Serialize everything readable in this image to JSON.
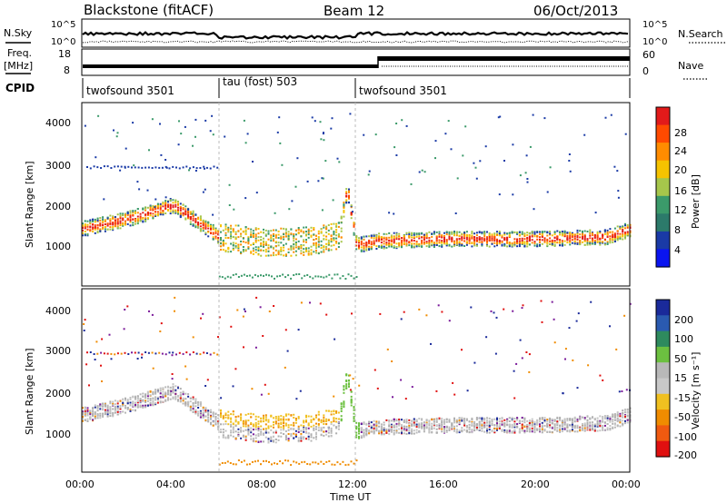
{
  "header": {
    "station": "Blackstone (fitACF)",
    "beam": "Beam 12",
    "date": "06/Oct/2013"
  },
  "panels": {
    "nsky": {
      "left_label": "N.Sky",
      "right_label": "N.Search",
      "left_ticks": [
        "10^5",
        "10^0"
      ],
      "right_ticks": [
        "10^5",
        "10^0"
      ]
    },
    "freq": {
      "left_label_top": "Freq.",
      "left_label_bottom": "[MHz]",
      "right_label": "Nave",
      "left_ticks": [
        "18",
        "8"
      ],
      "right_ticks": [
        "60",
        "0"
      ]
    },
    "cpid": {
      "label": "CPID",
      "segments": [
        {
          "name": "twofsound 3501",
          "start_h": 0,
          "end_h": 6
        },
        {
          "name": "tau (fost) 503",
          "start_h": 6,
          "end_h": 12
        },
        {
          "name": "twofsound 3501",
          "start_h": 12,
          "end_h": 24
        }
      ]
    },
    "power": {
      "ylabel": "Slant Range [km]",
      "yticks": [
        1000,
        2000,
        3000,
        4000
      ],
      "ylim": [
        0,
        4600
      ],
      "colorbar_label": "Power [dB]",
      "colorbar_ticks": [
        "28",
        "24",
        "20",
        "16",
        "12",
        "8",
        "4"
      ],
      "colorbar_colors": [
        "#e21a1a",
        "#ff4a00",
        "#ff8c00",
        "#f6c300",
        "#a6c64b",
        "#3b9a6a",
        "#2c7a6a",
        "#1a3aa6",
        "#0a14f0"
      ]
    },
    "velocity": {
      "ylabel": "Slant Range [km]",
      "yticks": [
        1000,
        2000,
        3000,
        4000
      ],
      "ylim": [
        0,
        4600
      ],
      "colorbar_label": "Velocity [m s⁻¹]",
      "colorbar_ticks": [
        "200",
        "100",
        "50",
        "15",
        "-15",
        "-50",
        "-100",
        "-200"
      ],
      "colorbar_colors": [
        "#1a2a9a",
        "#2a5ab0",
        "#2e8a5e",
        "#6cc040",
        "#b8b8b8",
        "#c8c8c8",
        "#f0c020",
        "#f08c00",
        "#f05a10",
        "#e01010"
      ]
    },
    "xaxis": {
      "label": "Time UT",
      "ticks": [
        "00:00",
        "04:00",
        "08:00",
        "12:00",
        "16:00",
        "20:00",
        "00:00"
      ]
    }
  },
  "chart_data": {
    "type": "heatmap",
    "title": "Blackstone (fitACF) Beam 12 06/Oct/2013",
    "xlabel": "Time UT",
    "ylabel": "Slant Range [km]",
    "xlim": [
      0,
      24
    ],
    "ylim": [
      0,
      4600
    ],
    "series": [
      {
        "name": "Power [dB]",
        "range": [
          0,
          30
        ]
      },
      {
        "name": "Velocity [m s-1]",
        "range": [
          -200,
          200
        ]
      }
    ],
    "main_echo_band_km": [
      [
        0,
        1450
      ],
      [
        2,
        1700
      ],
      [
        4,
        2050
      ],
      [
        6,
        1250
      ],
      [
        8,
        1100
      ],
      [
        10,
        1150
      ],
      [
        11.3,
        1300
      ],
      [
        11.6,
        2500
      ],
      [
        12,
        1050
      ],
      [
        13,
        1150
      ],
      [
        16,
        1200
      ],
      [
        20,
        1200
      ],
      [
        23,
        1250
      ],
      [
        24,
        1450
      ]
    ]
  }
}
